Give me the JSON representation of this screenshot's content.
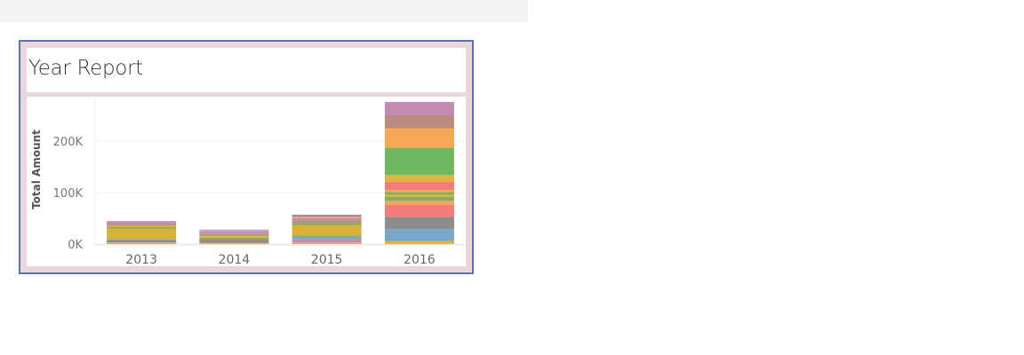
{
  "report": {
    "title": "Year Report"
  },
  "chart_data": {
    "type": "bar",
    "stacked": true,
    "categories": [
      "2013",
      "2014",
      "2015",
      "2016"
    ],
    "ylabel": "Total Amount",
    "xlabel": "",
    "ylim": [
      0,
      280000
    ],
    "yticks": [
      {
        "value": 0,
        "label": "0K"
      },
      {
        "value": 100000,
        "label": "100K"
      },
      {
        "value": 200000,
        "label": "200K"
      }
    ],
    "grid": true,
    "stacks": [
      {
        "category": "2013",
        "segments": [
          {
            "value": 3000,
            "color": "#f1a85b"
          },
          {
            "value": 4500,
            "color": "#8c8c8c"
          },
          {
            "value": 2500,
            "color": "#7aa7c7"
          },
          {
            "value": 20000,
            "color": "#d8b136"
          },
          {
            "value": 3500,
            "color": "#86ad5d"
          },
          {
            "value": 2500,
            "color": "#e3b341"
          },
          {
            "value": 3000,
            "color": "#ba8b7d"
          },
          {
            "value": 5500,
            "color": "#c18bb3"
          }
        ]
      },
      {
        "category": "2014",
        "segments": [
          {
            "value": 2500,
            "color": "#f1a85b"
          },
          {
            "value": 6000,
            "color": "#8c8c8c"
          },
          {
            "value": 4000,
            "color": "#86ad5d"
          },
          {
            "value": 4000,
            "color": "#d8b136"
          },
          {
            "value": 3000,
            "color": "#ba8b7d"
          },
          {
            "value": 4500,
            "color": "#c18bb3"
          },
          {
            "value": 4000,
            "color": "#b6a4c6"
          }
        ]
      },
      {
        "category": "2015",
        "segments": [
          {
            "value": 3000,
            "color": "#f1a85b"
          },
          {
            "value": 6000,
            "color": "#c18bb3"
          },
          {
            "value": 5000,
            "color": "#7aa7c7"
          },
          {
            "value": 3000,
            "color": "#86ad5d"
          },
          {
            "value": 20000,
            "color": "#d8b136"
          },
          {
            "value": 5000,
            "color": "#86ad5d"
          },
          {
            "value": 4000,
            "color": "#ba8b7d"
          },
          {
            "value": 4000,
            "color": "#c18bb3"
          },
          {
            "value": 3000,
            "color": "#e3b341"
          },
          {
            "value": 4000,
            "color": "#a88a8a"
          }
        ]
      },
      {
        "category": "2016",
        "segments": [
          {
            "value": 6000,
            "color": "#e3b341"
          },
          {
            "value": 23000,
            "color": "#7aa7c7"
          },
          {
            "value": 24000,
            "color": "#8c8c8c"
          },
          {
            "value": 23000,
            "color": "#f37b7b"
          },
          {
            "value": 8000,
            "color": "#f1a85b"
          },
          {
            "value": 8000,
            "color": "#86ad5d"
          },
          {
            "value": 4000,
            "color": "#d8b136"
          },
          {
            "value": 5000,
            "color": "#86ad5d"
          },
          {
            "value": 4000,
            "color": "#e3b341"
          },
          {
            "value": 16000,
            "color": "#f37b7b"
          },
          {
            "value": 13000,
            "color": "#e3b341"
          },
          {
            "value": 53000,
            "color": "#6fb862"
          },
          {
            "value": 38000,
            "color": "#f7a857"
          },
          {
            "value": 25000,
            "color": "#ba8b7d"
          },
          {
            "value": 26000,
            "color": "#c18bb3"
          }
        ]
      }
    ]
  }
}
